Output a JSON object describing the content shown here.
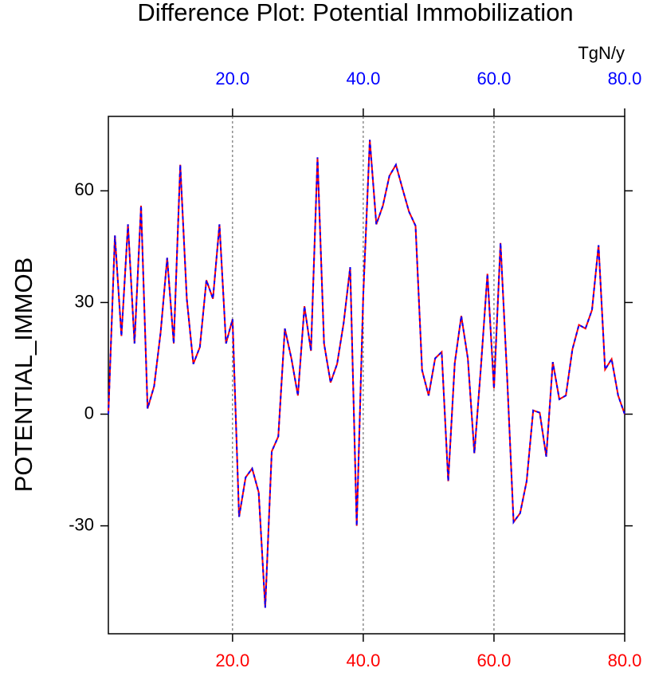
{
  "chart_data": {
    "type": "line",
    "title": "Difference Plot: Potential Immobilization",
    "y_label": "POTENTIAL_IMMOB",
    "x2_label": "TgN/y",
    "x": [
      1,
      2,
      3,
      4,
      5,
      6,
      7,
      8,
      9,
      10,
      11,
      12,
      13,
      14,
      15,
      16,
      17,
      18,
      19,
      20,
      21,
      22,
      23,
      24,
      25,
      26,
      27,
      28,
      29,
      30,
      31,
      32,
      33,
      34,
      35,
      36,
      37,
      38,
      39,
      40,
      41,
      42,
      43,
      44,
      45,
      46,
      47,
      48,
      49,
      50,
      51,
      52,
      53,
      54,
      55,
      56,
      57,
      58,
      59,
      60,
      61,
      62,
      63,
      64,
      65,
      66,
      67,
      68,
      69,
      70,
      71,
      72,
      73,
      74,
      75,
      76,
      77,
      78,
      79,
      80
    ],
    "series": [
      {
        "color": "#ff0000",
        "dash": false,
        "values": [
          0,
          48,
          21,
          51,
          19,
          56,
          1.5,
          7.5,
          22,
          42,
          19,
          67,
          31,
          13.5,
          18,
          36,
          31,
          51,
          19,
          25.5,
          -27.6,
          -17,
          -14.6,
          -21,
          -52,
          -10,
          -6,
          23,
          15,
          5,
          29,
          17,
          69,
          19,
          8.5,
          13.5,
          24.5,
          39.5,
          -30,
          32,
          73.7,
          51,
          56,
          64,
          67,
          60.6,
          54.4,
          50.6,
          11.8,
          5,
          15,
          16.7,
          -18,
          13.7,
          26.4,
          15,
          -10.5,
          12.6,
          37.7,
          6.9,
          46,
          10.5,
          -29,
          -26.6,
          -18,
          1,
          0.4,
          -11.4,
          14,
          4,
          5,
          17.4,
          24,
          23,
          28,
          45.4,
          12,
          14.8,
          5,
          0
        ]
      },
      {
        "color": "#0000ff",
        "dash": true,
        "values": [
          0,
          48,
          21,
          51,
          19,
          56,
          1.5,
          7.5,
          22,
          42,
          19,
          67,
          31,
          13.5,
          18,
          36,
          31,
          51,
          19,
          25.5,
          -27.6,
          -17,
          -14.6,
          -21,
          -52,
          -10,
          -6,
          23,
          15,
          5,
          29,
          17,
          69,
          19,
          8.5,
          13.5,
          24.5,
          39.5,
          -30,
          32,
          73.7,
          51,
          56,
          64,
          67,
          60.6,
          54.4,
          50.6,
          11.8,
          5,
          15,
          16.7,
          -18,
          13.7,
          26.4,
          15,
          -10.5,
          12.6,
          37.7,
          6.9,
          46,
          10.5,
          -29,
          -26.6,
          -18,
          1,
          0.4,
          -11.4,
          14,
          4,
          5,
          17.4,
          24,
          23,
          28,
          45.4,
          12,
          14.8,
          5,
          0
        ]
      }
    ],
    "xlim": [
      1,
      80
    ],
    "ylim": [
      -59,
      80
    ],
    "xticks": [
      {
        "value": 20,
        "label": "20.0"
      },
      {
        "value": 40,
        "label": "40.0"
      },
      {
        "value": 60,
        "label": "60.0"
      },
      {
        "value": 80,
        "label": "80.0"
      }
    ],
    "x2ticks": [
      {
        "value": 20,
        "label": "20.0"
      },
      {
        "value": 40,
        "label": "40.0"
      },
      {
        "value": 60,
        "label": "60.0"
      },
      {
        "value": 80,
        "label": "80.0"
      }
    ],
    "xtick_color": "#ff0000",
    "x2tick_color": "#0000ff",
    "yticks": [
      -30,
      0,
      30,
      60
    ],
    "grid": true
  }
}
